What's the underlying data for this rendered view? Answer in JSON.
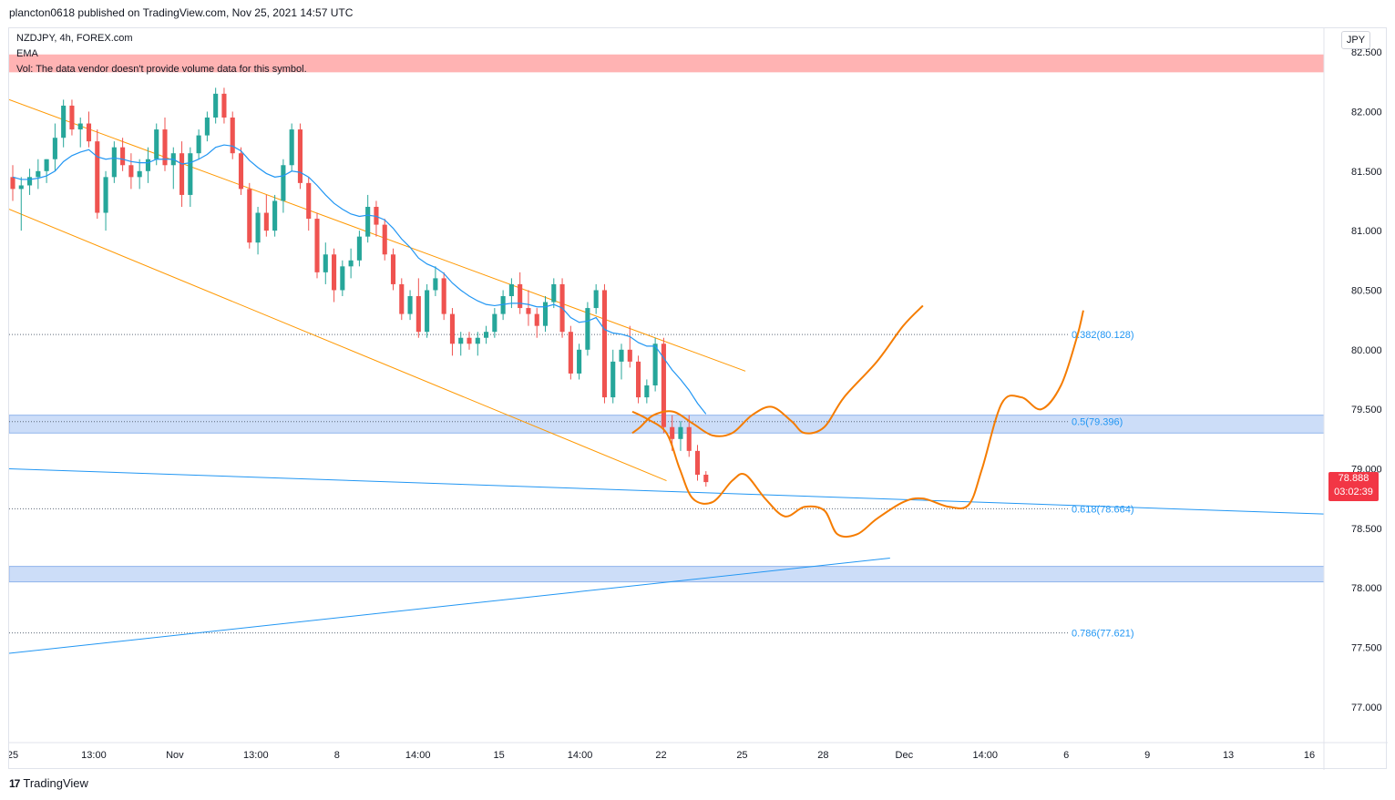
{
  "header": {
    "published": "plancton0618 published on TradingView.com, Nov 25, 2021 14:57 UTC"
  },
  "legend": {
    "symbol": "NZDJPY, 4h, FOREX.com",
    "ema": "EMA",
    "vol": "Vol: The data vendor doesn't provide volume data for this symbol."
  },
  "currency_button": "JPY",
  "last_price": {
    "price": "78.888",
    "countdown": "03:02:39"
  },
  "footer": {
    "brand": "TradingView",
    "logo": "tradingview-logo-icon"
  },
  "colors": {
    "up": "#26a69a",
    "down": "#ef5350",
    "ema": "#2196f3",
    "channel": "#ff9800",
    "projection": "#f57c00",
    "zone": "#bbd2f5",
    "trend": "#2196f3",
    "fib": "#2196f3",
    "warning": "#ffb3b3",
    "price_tag": "#f23645"
  },
  "chart_data": {
    "type": "candlestick",
    "symbol": "NZDJPY",
    "timeframe": "4h",
    "y_axis": {
      "min": 76.7,
      "max": 82.7,
      "ticks": [
        82.5,
        82.0,
        81.5,
        81.0,
        80.5,
        80.0,
        79.5,
        79.0,
        78.5,
        78.0,
        77.5,
        77.0
      ]
    },
    "x_axis": {
      "ticks": [
        "25",
        "13:00",
        "Nov",
        "13:00",
        "8",
        "14:00",
        "15",
        "14:00",
        "22",
        "25",
        "28",
        "Dec",
        "14:00",
        "6",
        "9",
        "13",
        "16"
      ]
    },
    "candles": [
      [
        81.45,
        81.55,
        81.25,
        81.35
      ],
      [
        81.35,
        81.45,
        81.0,
        81.38
      ],
      [
        81.38,
        81.52,
        81.3,
        81.45
      ],
      [
        81.45,
        81.6,
        81.35,
        81.5
      ],
      [
        81.5,
        81.6,
        81.4,
        81.6
      ],
      [
        81.6,
        81.9,
        81.5,
        81.78
      ],
      [
        81.78,
        82.1,
        81.7,
        82.05
      ],
      [
        82.05,
        82.1,
        81.8,
        81.85
      ],
      [
        81.85,
        81.95,
        81.7,
        81.9
      ],
      [
        81.9,
        82.0,
        81.7,
        81.75
      ],
      [
        81.75,
        81.85,
        81.1,
        81.15
      ],
      [
        81.15,
        81.5,
        81.0,
        81.45
      ],
      [
        81.45,
        81.75,
        81.4,
        81.7
      ],
      [
        81.7,
        81.78,
        81.5,
        81.55
      ],
      [
        81.55,
        81.65,
        81.35,
        81.45
      ],
      [
        81.45,
        81.6,
        81.35,
        81.5
      ],
      [
        81.5,
        81.7,
        81.4,
        81.6
      ],
      [
        81.6,
        81.9,
        81.55,
        81.85
      ],
      [
        81.85,
        81.95,
        81.5,
        81.55
      ],
      [
        81.55,
        81.7,
        81.35,
        81.65
      ],
      [
        81.65,
        81.75,
        81.2,
        81.3
      ],
      [
        81.3,
        81.7,
        81.2,
        81.65
      ],
      [
        81.65,
        81.85,
        81.6,
        81.8
      ],
      [
        81.8,
        82.0,
        81.75,
        81.95
      ],
      [
        81.95,
        82.2,
        81.9,
        82.15
      ],
      [
        82.15,
        82.2,
        81.9,
        81.95
      ],
      [
        81.95,
        82.0,
        81.6,
        81.65
      ],
      [
        81.65,
        81.7,
        81.3,
        81.35
      ],
      [
        81.35,
        81.4,
        80.85,
        80.9
      ],
      [
        80.9,
        81.2,
        80.8,
        81.15
      ],
      [
        81.15,
        81.3,
        80.95,
        81.0
      ],
      [
        81.0,
        81.3,
        80.95,
        81.25
      ],
      [
        81.25,
        81.6,
        81.15,
        81.55
      ],
      [
        81.55,
        81.9,
        81.5,
        81.85
      ],
      [
        81.85,
        81.9,
        81.35,
        81.4
      ],
      [
        81.4,
        81.45,
        81.0,
        81.1
      ],
      [
        81.1,
        81.15,
        80.6,
        80.65
      ],
      [
        80.65,
        80.9,
        80.55,
        80.8
      ],
      [
        80.8,
        80.85,
        80.4,
        80.5
      ],
      [
        80.5,
        80.75,
        80.45,
        80.7
      ],
      [
        80.7,
        80.85,
        80.6,
        80.75
      ],
      [
        80.75,
        81.0,
        80.7,
        80.95
      ],
      [
        80.95,
        81.3,
        80.9,
        81.2
      ],
      [
        81.2,
        81.25,
        80.95,
        81.05
      ],
      [
        81.05,
        81.1,
        80.75,
        80.8
      ],
      [
        80.8,
        80.85,
        80.5,
        80.55
      ],
      [
        80.55,
        80.6,
        80.25,
        80.3
      ],
      [
        80.3,
        80.5,
        80.25,
        80.45
      ],
      [
        80.45,
        80.6,
        80.1,
        80.15
      ],
      [
        80.15,
        80.55,
        80.1,
        80.5
      ],
      [
        80.5,
        80.7,
        80.45,
        80.6
      ],
      [
        80.6,
        80.65,
        80.25,
        80.3
      ],
      [
        80.3,
        80.35,
        79.95,
        80.05
      ],
      [
        80.05,
        80.15,
        79.95,
        80.1
      ],
      [
        80.1,
        80.15,
        80.0,
        80.05
      ],
      [
        80.05,
        80.15,
        79.95,
        80.1
      ],
      [
        80.1,
        80.2,
        80.05,
        80.15
      ],
      [
        80.15,
        80.35,
        80.1,
        80.3
      ],
      [
        80.3,
        80.5,
        80.25,
        80.45
      ],
      [
        80.45,
        80.6,
        80.35,
        80.55
      ],
      [
        80.55,
        80.65,
        80.3,
        80.35
      ],
      [
        80.35,
        80.5,
        80.2,
        80.3
      ],
      [
        80.3,
        80.35,
        80.1,
        80.2
      ],
      [
        80.2,
        80.45,
        80.15,
        80.4
      ],
      [
        80.4,
        80.6,
        80.35,
        80.55
      ],
      [
        80.55,
        80.6,
        80.1,
        80.15
      ],
      [
        80.15,
        80.2,
        79.75,
        79.8
      ],
      [
        79.8,
        80.05,
        79.75,
        80.0
      ],
      [
        80.0,
        80.4,
        79.95,
        80.35
      ],
      [
        80.35,
        80.55,
        80.3,
        80.5
      ],
      [
        80.5,
        80.55,
        79.55,
        79.6
      ],
      [
        79.6,
        80.0,
        79.55,
        79.9
      ],
      [
        79.9,
        80.05,
        79.75,
        80.0
      ],
      [
        80.0,
        80.2,
        79.85,
        79.9
      ],
      [
        79.9,
        79.95,
        79.55,
        79.6
      ],
      [
        79.6,
        79.75,
        79.55,
        79.7
      ],
      [
        79.7,
        80.1,
        79.65,
        80.05
      ],
      [
        80.05,
        80.1,
        79.3,
        79.35
      ],
      [
        79.35,
        79.45,
        79.15,
        79.25
      ],
      [
        79.25,
        79.4,
        79.15,
        79.35
      ],
      [
        79.35,
        79.45,
        79.1,
        79.15
      ],
      [
        79.15,
        79.2,
        78.9,
        78.95
      ],
      [
        78.95,
        78.98,
        78.85,
        78.888
      ]
    ],
    "ema": [
      81.45,
      81.43,
      81.43,
      81.44,
      81.46,
      81.5,
      81.58,
      81.63,
      81.66,
      81.68,
      81.62,
      81.6,
      81.61,
      81.6,
      81.58,
      81.57,
      81.57,
      81.6,
      81.6,
      81.6,
      81.56,
      81.57,
      81.6,
      81.64,
      81.7,
      81.72,
      81.71,
      81.67,
      81.59,
      81.53,
      81.48,
      81.45,
      81.46,
      81.5,
      81.49,
      81.45,
      81.38,
      81.3,
      81.23,
      81.18,
      81.14,
      81.12,
      81.13,
      81.12,
      81.09,
      81.02,
      80.93,
      80.86,
      80.77,
      80.72,
      80.69,
      80.64,
      80.56,
      80.5,
      80.45,
      80.41,
      80.38,
      80.37,
      80.38,
      80.39,
      80.39,
      80.38,
      80.36,
      80.36,
      80.38,
      80.35,
      80.27,
      80.23,
      80.24,
      80.27,
      80.17,
      80.14,
      80.13,
      80.11,
      80.06,
      80.03,
      80.03,
      79.93,
      79.83,
      79.75,
      79.66,
      79.55,
      79.46
    ],
    "fibonacci": [
      {
        "label": "0.382(80.128)",
        "price": 80.128
      },
      {
        "label": "0.5(79.396)",
        "price": 79.396
      },
      {
        "label": "0.618(78.664)",
        "price": 78.664
      },
      {
        "label": "0.786(77.621)",
        "price": 77.621
      }
    ],
    "zones": [
      {
        "from": 79.3,
        "to": 79.45
      },
      {
        "from": 78.05,
        "to": 78.18
      }
    ],
    "warning_band": {
      "from": 82.33,
      "to": 82.48
    },
    "channel_upper": [
      [
        0.0,
        82.1
      ],
      [
        0.56,
        79.82
      ]
    ],
    "channel_lower": [
      [
        0.0,
        81.18
      ],
      [
        0.5,
        78.9
      ]
    ],
    "trendline_top": [
      [
        0.0,
        79.0
      ],
      [
        1.0,
        78.62
      ]
    ],
    "trendline_bottom": [
      [
        0.0,
        77.45
      ],
      [
        0.67,
        78.25
      ]
    ],
    "projection_a": [
      [
        0.474,
        79.3
      ],
      [
        0.48,
        79.35
      ],
      [
        0.49,
        79.45
      ],
      [
        0.505,
        79.48
      ],
      [
        0.52,
        79.38
      ],
      [
        0.535,
        79.28
      ],
      [
        0.55,
        79.3
      ],
      [
        0.565,
        79.45
      ],
      [
        0.58,
        79.52
      ],
      [
        0.595,
        79.4
      ],
      [
        0.605,
        79.3
      ],
      [
        0.62,
        79.35
      ],
      [
        0.635,
        79.6
      ],
      [
        0.66,
        79.9
      ],
      [
        0.68,
        80.2
      ],
      [
        0.695,
        80.37
      ]
    ],
    "projection_b": [
      [
        0.474,
        79.48
      ],
      [
        0.485,
        79.42
      ],
      [
        0.5,
        79.3
      ],
      [
        0.51,
        79.0
      ],
      [
        0.52,
        78.75
      ],
      [
        0.535,
        78.72
      ],
      [
        0.55,
        78.9
      ],
      [
        0.56,
        78.95
      ],
      [
        0.575,
        78.75
      ],
      [
        0.59,
        78.6
      ],
      [
        0.605,
        78.68
      ],
      [
        0.62,
        78.65
      ],
      [
        0.63,
        78.45
      ],
      [
        0.645,
        78.45
      ],
      [
        0.66,
        78.58
      ],
      [
        0.68,
        78.72
      ],
      [
        0.695,
        78.75
      ],
      [
        0.715,
        78.68
      ],
      [
        0.73,
        78.7
      ],
      [
        0.74,
        79.0
      ],
      [
        0.755,
        79.55
      ],
      [
        0.77,
        79.6
      ],
      [
        0.785,
        79.5
      ],
      [
        0.8,
        79.7
      ],
      [
        0.812,
        80.1
      ],
      [
        0.817,
        80.33
      ]
    ]
  }
}
